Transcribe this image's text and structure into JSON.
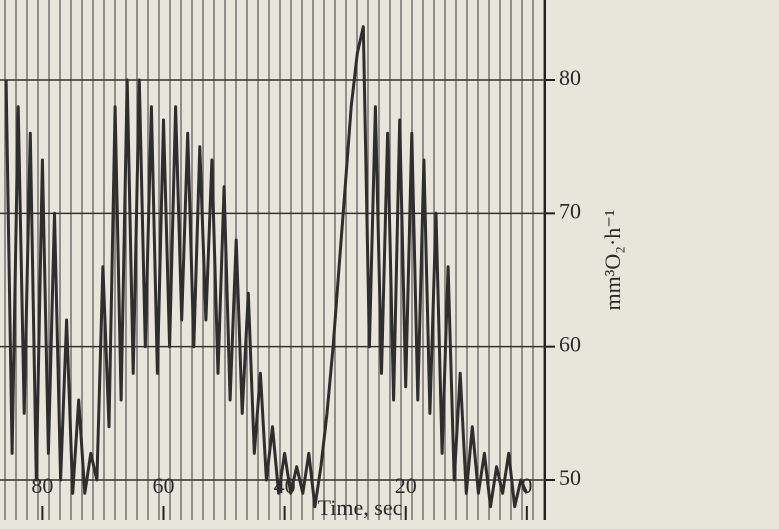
{
  "chart_data": {
    "type": "line",
    "x_label": "Time, sec",
    "y_label": "mm³O₂·h⁻¹",
    "x": [
      86,
      85,
      84,
      83,
      82,
      81,
      80,
      79,
      78,
      77,
      76,
      75,
      74,
      73,
      72,
      71,
      70,
      69,
      68,
      67,
      66,
      65,
      64,
      63,
      62,
      61,
      60,
      59,
      58,
      57,
      56,
      55,
      54,
      53,
      52,
      51,
      50,
      49,
      48,
      47,
      46,
      45,
      44,
      43,
      42,
      41,
      40,
      39,
      38,
      37,
      36,
      35,
      34,
      33,
      32,
      31,
      30,
      29,
      28,
      27,
      26,
      25,
      24,
      23,
      22,
      21,
      20,
      19,
      18,
      17,
      16,
      15,
      14,
      13,
      12,
      11,
      10,
      9,
      8,
      7,
      6,
      5,
      4,
      3,
      2,
      1,
      0
    ],
    "values": [
      80,
      52,
      78,
      55,
      76,
      50,
      74,
      52,
      70,
      50,
      62,
      49,
      56,
      49,
      52,
      50,
      66,
      54,
      78,
      56,
      80,
      58,
      80,
      60,
      78,
      58,
      77,
      60,
      78,
      62,
      76,
      60,
      75,
      62,
      74,
      58,
      72,
      56,
      68,
      55,
      64,
      52,
      58,
      50,
      54,
      49,
      52,
      49,
      51,
      49,
      52,
      48,
      51,
      55,
      60,
      66,
      72,
      78,
      82,
      84,
      60,
      78,
      58,
      76,
      56,
      77,
      57,
      76,
      56,
      74,
      55,
      70,
      52,
      66,
      50,
      58,
      49,
      54,
      49,
      52,
      48,
      51,
      49,
      52,
      48,
      50,
      49
    ],
    "color": "#2e2e2e",
    "xlim": [
      87,
      -3
    ],
    "xticks": [
      80,
      60,
      40,
      20,
      0
    ],
    "ylim": [
      47,
      86
    ],
    "yticks": [
      50,
      60,
      70,
      80
    ],
    "grid": true
  }
}
